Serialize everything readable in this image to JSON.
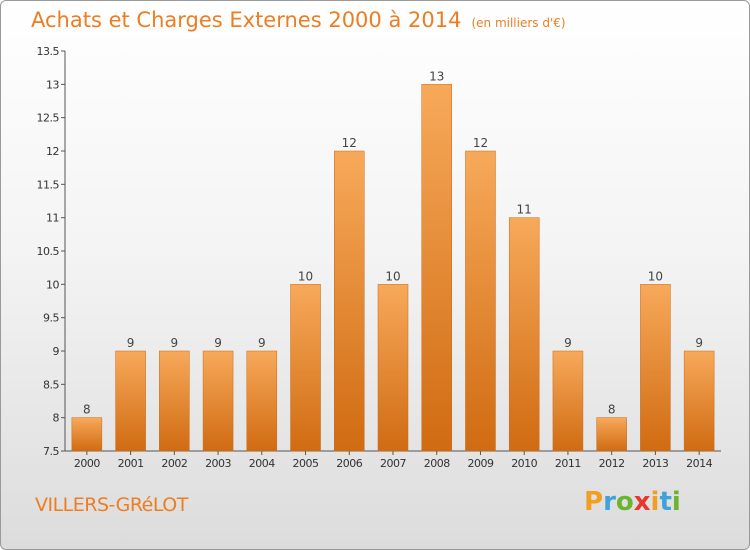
{
  "chart_data": {
    "type": "bar",
    "title": "Achats et Charges Externes 2000 à 2014",
    "subtitle": "(en milliers d'€)",
    "categories": [
      "2000",
      "2001",
      "2002",
      "2003",
      "2004",
      "2005",
      "2006",
      "2007",
      "2008",
      "2009",
      "2010",
      "2011",
      "2012",
      "2013",
      "2014"
    ],
    "values": [
      8,
      9,
      9,
      9,
      9,
      10,
      12,
      10,
      13,
      12,
      11,
      9,
      8,
      10,
      9
    ],
    "ylim": [
      7.5,
      13.5
    ],
    "yticks": [
      "7.5",
      "8",
      "8.5",
      "9",
      "9.5",
      "10",
      "10.5",
      "11",
      "11.5",
      "12",
      "12.5",
      "13",
      "13.5"
    ],
    "bar_color": "#f08a2a",
    "grid": false
  },
  "commune": "VILLERS-GRéLOT",
  "logo": {
    "text": "Proxiti",
    "letters": [
      "P",
      "r",
      "o",
      "x",
      "i",
      "t",
      "i"
    ],
    "colors": [
      "#f0a020",
      "#3fa3d9",
      "#6bb52e",
      "#e8372c",
      "#f0a020",
      "#3fa3d9",
      "#6bb52e"
    ]
  }
}
